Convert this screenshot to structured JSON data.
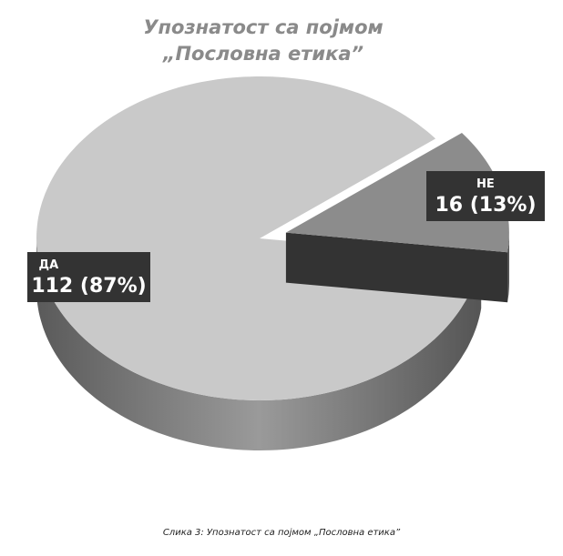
{
  "chart_data": {
    "type": "pie3d",
    "title": "Упознатост са појмом „Пословна етика”",
    "caption": "Слика 3: Упознатост са појмом „Пословна етика”",
    "categories": [
      "ДА",
      "НЕ"
    ],
    "values": [
      112,
      16
    ],
    "value_labels": [
      "112 (87%)",
      "16 (13%)"
    ],
    "colors": [
      "#c9c9c9",
      "#8c8c8c"
    ],
    "exploded": [
      false,
      true
    ]
  }
}
